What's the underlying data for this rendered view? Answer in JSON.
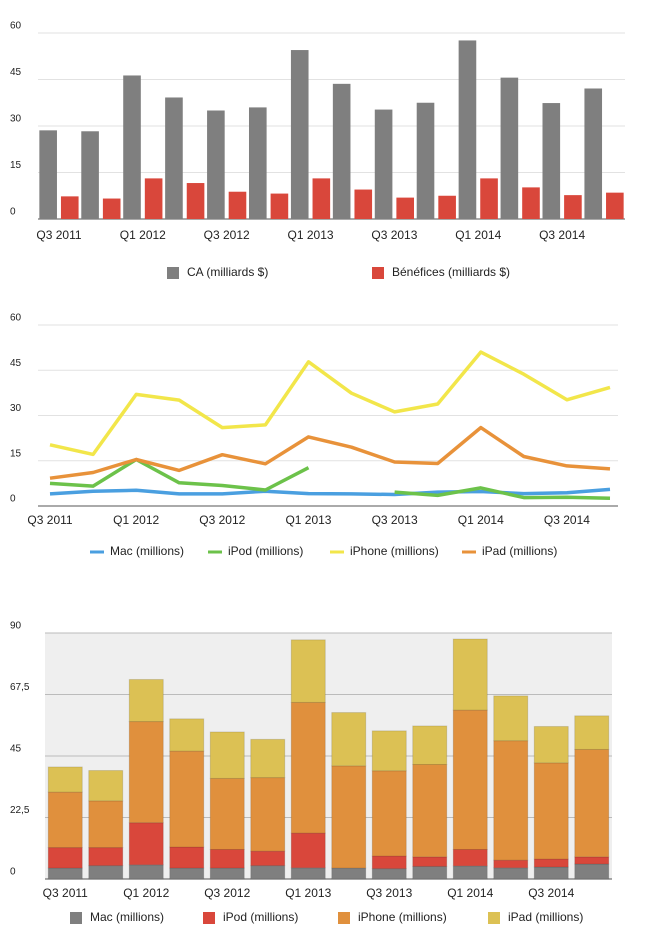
{
  "chart_data": [
    {
      "type": "bar",
      "categories": [
        "Q3 2011",
        null,
        "Q1 2012",
        null,
        "Q3 2012",
        null,
        "Q1 2013",
        null,
        "Q3 2013",
        null,
        "Q1 2014",
        null,
        "Q3 2014",
        null
      ],
      "series": [
        {
          "name": "CA (milliards $)",
          "color": "#7f7f7f",
          "values": [
            28.6,
            28.3,
            46.3,
            39.2,
            35.0,
            36.0,
            54.5,
            43.6,
            35.3,
            37.5,
            57.6,
            45.6,
            37.4,
            42.1
          ]
        },
        {
          "name": "Bénéfices (milliards $)",
          "color": "#d9473b",
          "values": [
            7.3,
            6.6,
            13.1,
            11.6,
            8.8,
            8.2,
            13.1,
            9.5,
            6.9,
            7.5,
            13.1,
            10.2,
            7.7,
            8.5
          ]
        }
      ],
      "ylim": [
        0,
        60
      ],
      "yticks": [
        0,
        15,
        30,
        45,
        60
      ],
      "grid": true,
      "legend": "bottom"
    },
    {
      "type": "line",
      "categories": [
        "Q3 2011",
        null,
        "Q1 2012",
        null,
        "Q3 2012",
        null,
        "Q1 2013",
        null,
        "Q3 2013",
        null,
        "Q1 2014",
        null,
        "Q3 2014",
        null
      ],
      "series": [
        {
          "name": "Mac (millions)",
          "color": "#4a9fe0",
          "values": [
            4.0,
            4.9,
            5.2,
            4.0,
            4.0,
            4.9,
            4.1,
            4.0,
            3.8,
            4.6,
            4.8,
            4.1,
            4.4,
            5.5
          ]
        },
        {
          "name": "iPod (millions)",
          "color": "#6cc24a",
          "values": [
            7.5,
            6.6,
            15.4,
            7.7,
            6.8,
            5.3,
            12.7,
            null,
            4.6,
            3.5,
            6.0,
            2.8,
            2.9,
            2.6
          ]
        },
        {
          "name": "iPhone (millions)",
          "color": "#f2e64a",
          "values": [
            20.3,
            17.1,
            37.0,
            35.1,
            26.0,
            26.9,
            47.8,
            37.4,
            31.2,
            33.8,
            51.0,
            43.7,
            35.2,
            39.3
          ]
        },
        {
          "name": "iPad (millions)",
          "color": "#e8923a",
          "values": [
            9.2,
            11.1,
            15.4,
            11.8,
            17.0,
            14.0,
            22.9,
            19.5,
            14.6,
            14.1,
            26.0,
            16.4,
            13.3,
            12.3
          ]
        }
      ],
      "ylim": [
        0,
        60
      ],
      "yticks": [
        0,
        15,
        30,
        45,
        60
      ],
      "grid": true,
      "legend": "bottom"
    },
    {
      "type": "stacked-bar",
      "categories": [
        "Q3 2011",
        null,
        "Q1 2012",
        null,
        "Q3 2012",
        null,
        "Q1 2013",
        null,
        "Q3 2013",
        null,
        "Q1 2014",
        null,
        "Q3 2014",
        null
      ],
      "series": [
        {
          "name": "Mac (millions)",
          "color": "#7f7f7f",
          "values": [
            4.0,
            4.9,
            5.2,
            4.0,
            4.0,
            4.9,
            4.1,
            4.0,
            3.8,
            4.6,
            4.8,
            4.1,
            4.4,
            5.5
          ]
        },
        {
          "name": "iPod (millions)",
          "color": "#d9473b",
          "values": [
            7.5,
            6.6,
            15.4,
            7.7,
            6.8,
            5.3,
            12.7,
            null,
            4.6,
            3.5,
            6.0,
            2.8,
            2.9,
            2.6
          ]
        },
        {
          "name": "iPhone (millions)",
          "color": "#e0903d",
          "values": [
            20.3,
            17.1,
            37.0,
            35.1,
            26.0,
            26.9,
            47.8,
            37.4,
            31.2,
            33.8,
            51.0,
            43.7,
            35.2,
            39.3
          ]
        },
        {
          "name": "iPad (millions)",
          "color": "#dcc154",
          "values": [
            9.2,
            11.1,
            15.4,
            11.8,
            17.0,
            14.0,
            22.9,
            19.5,
            14.6,
            14.1,
            26.0,
            16.4,
            13.3,
            12.3
          ]
        }
      ],
      "ylim": [
        0,
        90
      ],
      "yticks": [
        0,
        {
          "value": 22.5,
          "label": "22,5"
        },
        45,
        {
          "value": 67.5,
          "label": "67,5"
        },
        90
      ],
      "grid": true,
      "legend": "bottom"
    }
  ]
}
